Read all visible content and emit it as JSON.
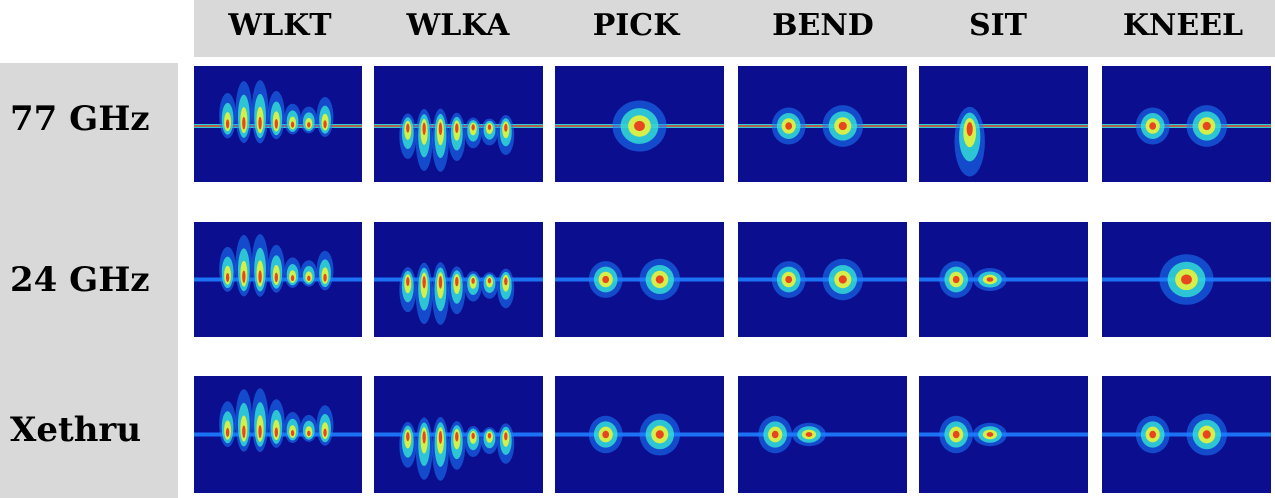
{
  "columns": [
    "WLKT",
    "WLKA",
    "PICK",
    "BEND",
    "SIT",
    "KNEEL"
  ],
  "rows": [
    "77 GHz",
    "24 GHz",
    "Xethru"
  ],
  "colors": {
    "header_background": "#d9d9d9",
    "panel_background": "#0b0f8f",
    "low": "#1e7dff",
    "mid": "#33e3d6",
    "high": "#e8f23a",
    "peak": "#e8341c"
  },
  "panels": [
    {
      "row": "77 GHz",
      "column": "WLKT",
      "pattern": "positive-walking-bursts"
    },
    {
      "row": "77 GHz",
      "column": "WLKA",
      "pattern": "negative-walking-bursts"
    },
    {
      "row": "77 GHz",
      "column": "PICK",
      "pattern": "central-burst"
    },
    {
      "row": "77 GHz",
      "column": "BEND",
      "pattern": "two-bursts"
    },
    {
      "row": "77 GHz",
      "column": "SIT",
      "pattern": "early-negative-burst"
    },
    {
      "row": "77 GHz",
      "column": "KNEEL",
      "pattern": "two-bursts"
    },
    {
      "row": "24 GHz",
      "column": "WLKT",
      "pattern": "positive-walking-bursts"
    },
    {
      "row": "24 GHz",
      "column": "WLKA",
      "pattern": "negative-walking-bursts"
    },
    {
      "row": "24 GHz",
      "column": "PICK",
      "pattern": "two-bursts"
    },
    {
      "row": "24 GHz",
      "column": "BEND",
      "pattern": "two-bursts"
    },
    {
      "row": "24 GHz",
      "column": "SIT",
      "pattern": "early-burst"
    },
    {
      "row": "24 GHz",
      "column": "KNEEL",
      "pattern": "central-burst"
    },
    {
      "row": "Xethru",
      "column": "WLKT",
      "pattern": "positive-walking-bursts"
    },
    {
      "row": "Xethru",
      "column": "WLKA",
      "pattern": "negative-walking-bursts"
    },
    {
      "row": "Xethru",
      "column": "PICK",
      "pattern": "two-bursts"
    },
    {
      "row": "Xethru",
      "column": "BEND",
      "pattern": "early-burst"
    },
    {
      "row": "Xethru",
      "column": "SIT",
      "pattern": "early-burst"
    },
    {
      "row": "Xethru",
      "column": "KNEEL",
      "pattern": "two-bursts"
    }
  ]
}
